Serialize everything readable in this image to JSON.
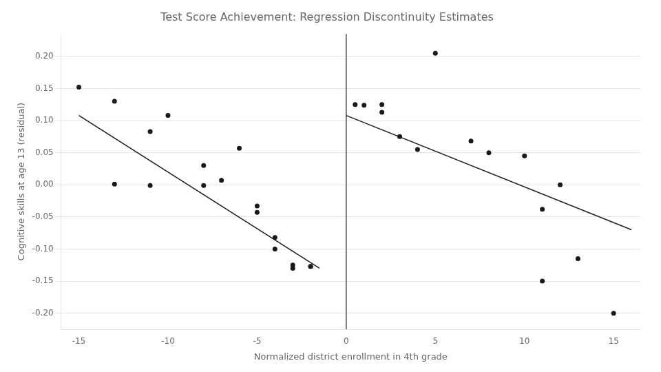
{
  "chart_data": {
    "type": "scatter",
    "title": "Test Score Achievement: Regression Discontinuity Estimates",
    "xlabel": "Normalized district enrollment in 4th grade",
    "ylabel": "Cognitive skills at age 13 (residual)",
    "xlim": [
      -16,
      16.5
    ],
    "ylim": [
      -0.225,
      0.235
    ],
    "xticks": [
      -15,
      -10,
      -5,
      0,
      5,
      10,
      15
    ],
    "yticks": [
      {
        "value": -0.2,
        "label": "-0.20"
      },
      -0.15,
      {
        "value": -0.1,
        "label": "-0.10"
      },
      -0.05,
      {
        "value": 0,
        "label": "0.00"
      },
      0.05,
      {
        "value": 0.1,
        "label": "0.10"
      },
      0.15,
      {
        "value": 0.2,
        "label": "0.20"
      }
    ],
    "grid": "y",
    "series": [
      {
        "type": "scatter",
        "color": "#1a1a1a",
        "x": [
          -15,
          -13,
          -13,
          -11,
          -11,
          -10,
          -8,
          -8,
          -7,
          -6,
          -5,
          -5,
          -4,
          -4,
          -3,
          -3,
          -2,
          -2
        ],
        "values": [
          0.152,
          0.13,
          0.001,
          0.083,
          -0.001,
          0.108,
          0.03,
          -0.001,
          0.007,
          0.057,
          -0.043,
          -0.033,
          -0.082,
          -0.1,
          -0.125,
          -0.13,
          -0.127,
          -0.127
        ]
      },
      {
        "type": "scatter",
        "color": "#1a1a1a",
        "x": [
          1,
          2,
          3,
          4,
          5,
          7,
          8,
          10,
          11,
          11,
          12,
          13,
          15
        ],
        "values": [
          0.124,
          0.113,
          0.075,
          0.055,
          0.205,
          0.068,
          0.05,
          0.045,
          -0.038,
          -0.15,
          0.0,
          -0.115,
          -0.2
        ]
      },
      {
        "type": "scatter",
        "color": "#1a1a1a",
        "x": [
          0.5,
          2
        ],
        "values": [
          0.125,
          0.125
        ]
      },
      {
        "type": "line",
        "color": "#1a1a1a",
        "x": [
          -15,
          -1.5
        ],
        "values": [
          0.108,
          -0.13
        ]
      },
      {
        "type": "line",
        "color": "#1a1a1a",
        "x": [
          0,
          16
        ],
        "values": [
          0.108,
          -0.07
        ]
      }
    ],
    "vlines": [
      {
        "x": 0,
        "color": "#1a1a1a"
      }
    ]
  }
}
